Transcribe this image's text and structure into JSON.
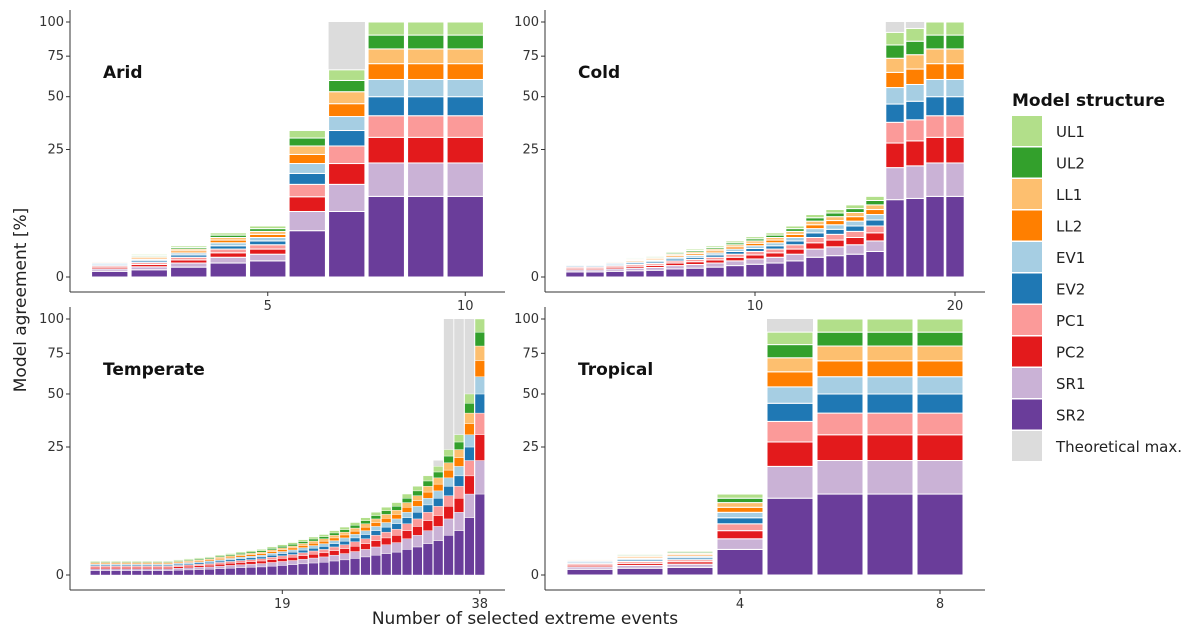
{
  "chart_data": {
    "type": "bar",
    "stacked": true,
    "xlabel": "Number of selected extreme events",
    "ylabel": "Model agreement [%]",
    "y_scale": "sqrt",
    "ylim": [
      0,
      100
    ],
    "y_ticks": [
      0,
      25,
      50,
      75,
      100
    ],
    "legend": {
      "title": "Model structure",
      "placement": "right",
      "entries": [
        "UL1",
        "UL2",
        "LL1",
        "LL2",
        "EV1",
        "EV2",
        "PC1",
        "PC2",
        "SR1",
        "SR2",
        "Theoretical max."
      ]
    },
    "colors": {
      "SR2": "#6a3d9a",
      "SR1": "#cab2d6",
      "PC2": "#e31a1c",
      "PC1": "#fb9a99",
      "EV2": "#1f78b4",
      "EV1": "#a6cee3",
      "LL2": "#ff7f00",
      "LL1": "#fdbf6f",
      "UL2": "#33a02c",
      "UL1": "#b2df8a",
      "Theoretical max.": "#dcdcdc"
    },
    "panels": [
      {
        "title": "Arid",
        "n": 10,
        "x_ticks": [
          5,
          10
        ],
        "totals": [
          0.5,
          0.8,
          1.5,
          3,
          4,
          33,
          66,
          100,
          100,
          100
        ],
        "theoretical_max": [
          0.5,
          0.8,
          1.5,
          3,
          4,
          33,
          100,
          100,
          100,
          100
        ]
      },
      {
        "title": "Cold",
        "n": 20,
        "x_ticks": [
          10,
          20
        ],
        "totals": [
          0.4,
          0.4,
          0.5,
          0.6,
          0.7,
          1,
          1.2,
          1.5,
          2,
          2.5,
          3,
          4,
          6,
          7,
          8,
          10,
          92,
          95,
          100,
          100
        ],
        "theoretical_max": [
          0.4,
          0.4,
          0.5,
          0.6,
          0.7,
          1,
          1.2,
          1.5,
          2,
          2.5,
          3,
          4,
          6,
          7,
          8,
          10,
          100,
          100,
          100,
          100
        ]
      },
      {
        "title": "Temperate",
        "n": 38,
        "x_ticks": [
          19,
          38
        ],
        "totals": [
          0.3,
          0.3,
          0.3,
          0.3,
          0.3,
          0.3,
          0.3,
          0.3,
          0.35,
          0.4,
          0.45,
          0.5,
          0.6,
          0.7,
          0.8,
          0.9,
          1,
          1.2,
          1.4,
          1.6,
          1.9,
          2.2,
          2.5,
          3,
          3.5,
          4.2,
          5,
          6,
          7,
          8,
          10,
          12,
          15,
          18,
          24,
          30,
          50,
          100
        ],
        "theoretical_max": [
          0.3,
          0.3,
          0.3,
          0.3,
          0.3,
          0.3,
          0.3,
          0.3,
          0.35,
          0.4,
          0.45,
          0.5,
          0.6,
          0.7,
          0.8,
          0.9,
          1,
          1.2,
          1.4,
          1.6,
          1.9,
          2.2,
          2.5,
          3,
          3.5,
          4.2,
          5,
          6,
          7,
          8,
          10,
          12,
          15,
          20,
          100,
          100,
          100,
          100
        ]
      },
      {
        "title": "Tropical",
        "n": 8,
        "x_ticks": [
          4,
          8
        ],
        "totals": [
          0.5,
          0.7,
          0.9,
          10,
          90,
          100,
          100,
          100
        ],
        "theoretical_max": [
          0.5,
          0.7,
          0.9,
          10,
          100,
          100,
          100,
          100
        ]
      }
    ]
  }
}
